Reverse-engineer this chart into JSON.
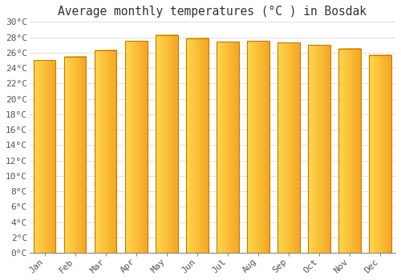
{
  "title": "Average monthly temperatures (°C ) in Bosdak",
  "months": [
    "Jan",
    "Feb",
    "Mar",
    "Apr",
    "May",
    "Jun",
    "Jul",
    "Aug",
    "Sep",
    "Oct",
    "Nov",
    "Dec"
  ],
  "temperatures": [
    25.0,
    25.5,
    26.3,
    27.5,
    28.3,
    27.9,
    27.4,
    27.5,
    27.3,
    27.0,
    26.5,
    25.7
  ],
  "bar_color_left": "#FFD84D",
  "bar_color_right": "#F5A623",
  "bar_edge_color": "#C47A00",
  "ylim": [
    0,
    30
  ],
  "ytick_step": 2,
  "background_color": "#FFFFFF",
  "grid_color": "#E0E0E8",
  "title_fontsize": 10.5,
  "tick_fontsize": 8,
  "font_family": "monospace"
}
